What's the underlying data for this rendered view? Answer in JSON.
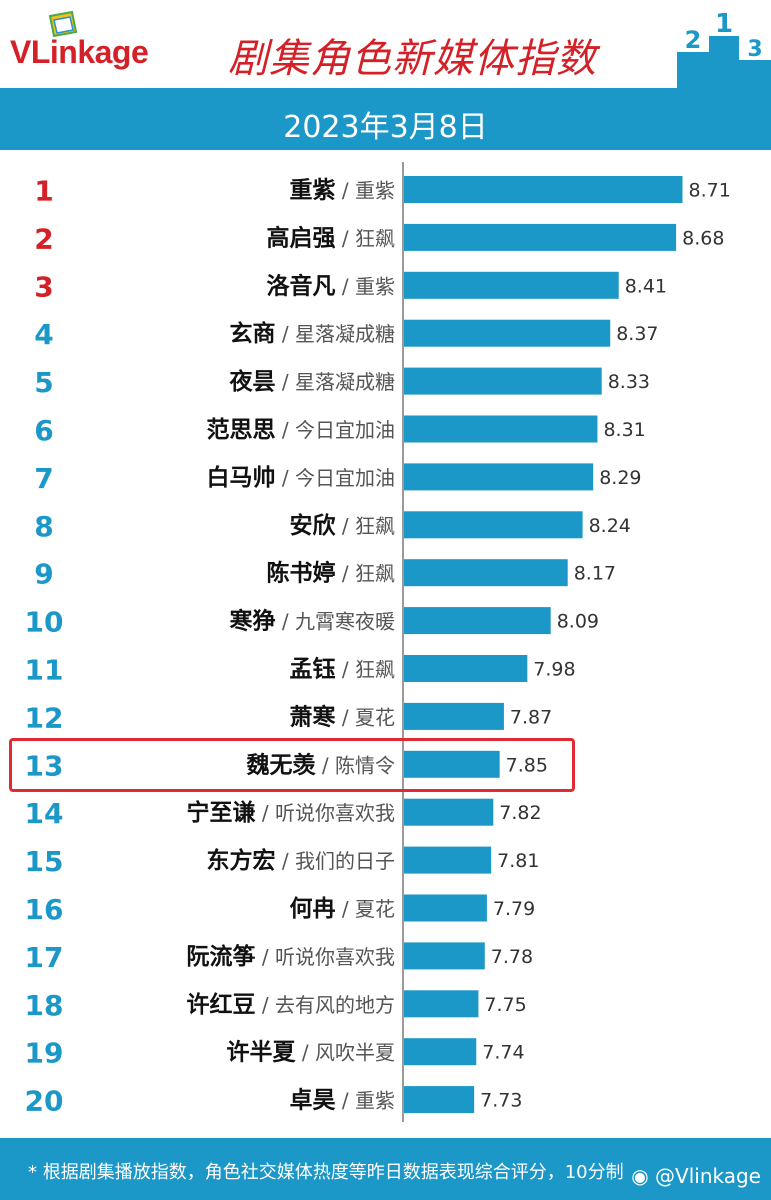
{
  "header": {
    "logo_text": "VLinkage",
    "title": "剧集角色新媒体指数",
    "date": "2023年3月8日"
  },
  "footer": {
    "note": "* 根据剧集播放指数，角色社交媒体热度等昨日数据表现综合评分，10分制",
    "watermark": "@Vlinkage"
  },
  "colors": {
    "bar": "#1b97c8",
    "rank_top3": "#d42027",
    "rank_other": "#1b97c8",
    "highlight_border": "#e02a34"
  },
  "icons": [
    "logo-mark-icon",
    "podium-icon",
    "weibo-icon"
  ],
  "highlight_rank": 13,
  "chart_data": {
    "type": "bar",
    "orientation": "horizontal",
    "title": "剧集角色新媒体指数",
    "xlim": [
      7.4,
      8.75
    ],
    "grid": false,
    "ranks": [
      "1",
      "2",
      "3",
      "4",
      "5",
      "6",
      "7",
      "8",
      "9",
      "10",
      "11",
      "12",
      "13",
      "14",
      "15",
      "16",
      "17",
      "18",
      "19",
      "20"
    ],
    "characters": [
      "重紫",
      "高启强",
      "洛音凡",
      "玄商",
      "夜昙",
      "范思思",
      "白马帅",
      "安欣",
      "陈书婷",
      "寒狰",
      "孟钰",
      "萧寒",
      "魏无羡",
      "宁至谦",
      "东方宏",
      "何冉",
      "阮流筝",
      "许红豆",
      "许半夏",
      "卓昊"
    ],
    "dramas": [
      "重紫",
      "狂飙",
      "重紫",
      "星落凝成糖",
      "星落凝成糖",
      "今日宜加油",
      "今日宜加油",
      "狂飙",
      "狂飙",
      "九霄寒夜暖",
      "狂飙",
      "夏花",
      "陈情令",
      "听说你喜欢我",
      "我们的日子",
      "夏花",
      "听说你喜欢我",
      "去有风的地方",
      "风吹半夏",
      "重紫"
    ],
    "values": [
      8.71,
      8.68,
      8.41,
      8.37,
      8.33,
      8.31,
      8.29,
      8.24,
      8.17,
      8.09,
      7.98,
      7.87,
      7.85,
      7.82,
      7.81,
      7.79,
      7.78,
      7.75,
      7.74,
      7.73
    ],
    "value_labels": [
      "8.71",
      "8.68",
      "8.41",
      "8.37",
      "8.33",
      "8.31",
      "8.29",
      "8.24",
      "8.17",
      "8.09",
      "7.98",
      "7.87",
      "7.85",
      "7.82",
      "7.81",
      "7.79",
      "7.78",
      "7.75",
      "7.74",
      "7.73"
    ]
  }
}
